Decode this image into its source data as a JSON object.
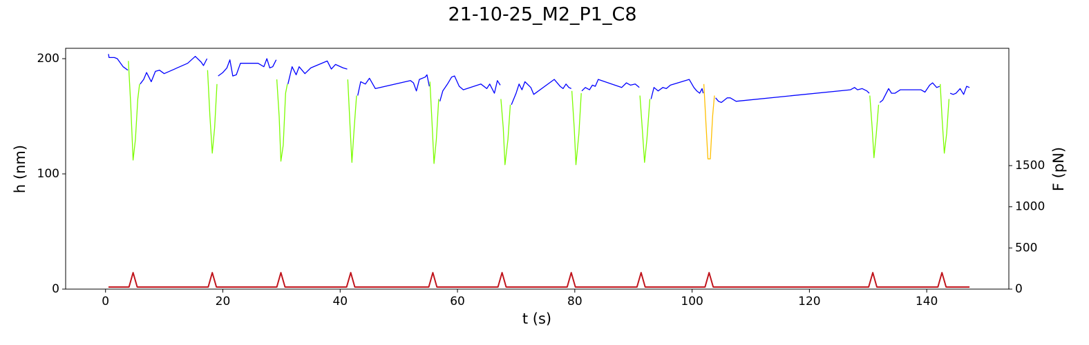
{
  "chart_data": {
    "type": "line",
    "title": "21-10-25_M2_P1_C8",
    "xlabel": "t (s)",
    "ylabel": "h (nm)",
    "y2label": "F (pN)",
    "ylabel_color": "#0000ff",
    "y2label_color": "#c0141c",
    "xlim": [
      -6.8,
      154
    ],
    "xticks": [
      0,
      20,
      40,
      60,
      80,
      100,
      120,
      140
    ],
    "ylim": [
      0,
      209
    ],
    "yticks": [
      0,
      100,
      200
    ],
    "y2lim": [
      0,
      2925
    ],
    "y2ticks": [
      0,
      500,
      1000,
      1500
    ],
    "grid": false,
    "series": [
      {
        "color": "#0000ff",
        "x": [
          0.5,
          0.6,
          1.5,
          2,
          3,
          3.8,
          null,
          5.9,
          6.5,
          7,
          7.8,
          8.5,
          9.2,
          10,
          14,
          15.3,
          16.3,
          16.7,
          17.3,
          null,
          19.2,
          20,
          20.7,
          21.2,
          21.7,
          22.3,
          23,
          26,
          27,
          27.5,
          28,
          28.5,
          29.1,
          null,
          31.1,
          31.8,
          32.5,
          33,
          34,
          35,
          37.8,
          38.5,
          39.2,
          40.5,
          41.2,
          null,
          43,
          43.5,
          44.3,
          45,
          46,
          52,
          52.5,
          53,
          53.5,
          54.5,
          54.8,
          55.2,
          null,
          57,
          57.5,
          58.3,
          59,
          59.5,
          60.3,
          61,
          64,
          65,
          65.5,
          66.3,
          66.8,
          67.3,
          null,
          69.2,
          70,
          70.5,
          71,
          71.5,
          72.5,
          73,
          76.5,
          77.5,
          78,
          78.5,
          79,
          79.4,
          null,
          81.2,
          81.8,
          82.5,
          83,
          83.5,
          84,
          88,
          88.8,
          89.5,
          90.3,
          91,
          null,
          93,
          93.5,
          94.2,
          95,
          95.6,
          96.3,
          99.5,
          100.3,
          100.8,
          101.3,
          101.7,
          101.9,
          null,
          104,
          104.5,
          105,
          106,
          106.5,
          107.5,
          127,
          127.7,
          128.2,
          129,
          129.8,
          130.2,
          null,
          132,
          132.5,
          133.5,
          134,
          134.6,
          135.5,
          139,
          139.7,
          140.5,
          141,
          141.7,
          142.2,
          null,
          144,
          144.5,
          145,
          145.7,
          146.3,
          146.8,
          147.3
        ],
        "values": [
          204,
          201,
          201,
          200,
          193,
          190,
          null,
          178,
          182,
          188,
          180,
          189,
          190,
          187,
          196,
          202,
          197,
          194,
          200,
          null,
          185,
          188,
          192,
          199,
          185,
          186,
          196,
          196,
          193,
          200,
          192,
          193,
          199,
          null,
          178,
          193,
          186,
          193,
          187,
          192,
          198,
          191,
          195,
          192,
          191,
          null,
          168,
          180,
          178,
          183,
          174,
          181,
          179,
          172,
          182,
          184,
          186,
          176,
          null,
          163,
          172,
          178,
          184,
          185,
          176,
          173,
          178,
          174,
          178,
          170,
          181,
          177,
          null,
          160,
          170,
          178,
          173,
          180,
          175,
          169,
          182,
          176,
          174,
          178,
          175,
          174,
          null,
          172,
          175,
          173,
          177,
          176,
          182,
          175,
          179,
          177,
          178,
          175,
          null,
          165,
          175,
          172,
          175,
          174,
          177,
          182,
          175,
          172,
          170,
          174,
          170,
          null,
          166,
          163,
          162,
          166,
          166,
          163,
          173,
          175,
          173,
          174,
          172,
          170,
          null,
          162,
          164,
          174,
          170,
          170,
          173,
          173,
          171,
          177,
          179,
          175,
          176,
          null,
          170,
          169,
          170,
          174,
          169,
          176,
          175
        ]
      },
      {
        "color": "#7cfc00",
        "x": [
          3.9,
          4.3,
          4.7,
          5.1,
          5.5,
          5.8,
          null,
          17.4,
          17.8,
          18.2,
          18.6,
          19,
          null,
          29.2,
          29.6,
          29.9,
          30.3,
          30.7,
          31,
          null,
          41.3,
          41.7,
          42,
          42.4,
          42.8,
          null,
          55.3,
          55.7,
          56,
          56.4,
          56.8,
          null,
          67.4,
          67.8,
          68.1,
          68.6,
          69,
          null,
          79.5,
          79.9,
          80.2,
          80.7,
          81.1,
          null,
          91.1,
          91.5,
          91.9,
          92.3,
          92.8,
          null,
          130.3,
          130.7,
          131,
          131.4,
          131.8,
          null,
          142.3,
          142.6,
          143,
          143.4,
          143.8
        ],
        "values": [
          198,
          160,
          112,
          130,
          165,
          178,
          null,
          190,
          150,
          118,
          140,
          178,
          null,
          182,
          150,
          111,
          125,
          170,
          178,
          null,
          182,
          140,
          110,
          140,
          168,
          null,
          180,
          140,
          109,
          130,
          165,
          null,
          165,
          140,
          108,
          130,
          160,
          null,
          172,
          140,
          108,
          135,
          170,
          null,
          168,
          140,
          110,
          130,
          165,
          null,
          168,
          140,
          114,
          135,
          160,
          null,
          178,
          150,
          118,
          135,
          165
        ]
      },
      {
        "color": "#ffbf00",
        "x": [
          102,
          102.4,
          102.7,
          103.1,
          103.5,
          103.8
        ],
        "values": [
          178,
          140,
          113,
          113,
          150,
          168
        ]
      },
      {
        "color": "#c0141c",
        "axis": "y2",
        "x": [
          0.5,
          4,
          4.7,
          5.4,
          17.5,
          18.2,
          18.9,
          29.2,
          29.9,
          30.6,
          41.1,
          41.8,
          42.5,
          55.1,
          55.8,
          56.5,
          66.9,
          67.6,
          68.3,
          78.7,
          79.4,
          80.1,
          90.6,
          91.3,
          92,
          102.2,
          102.9,
          103.6,
          130.1,
          130.8,
          131.5,
          141.9,
          142.6,
          143.3,
          147.3
        ],
        "values": [
          25,
          25,
          200,
          25,
          25,
          200,
          25,
          25,
          200,
          25,
          25,
          200,
          25,
          25,
          200,
          25,
          25,
          200,
          25,
          25,
          200,
          25,
          25,
          200,
          25,
          25,
          200,
          25,
          25,
          200,
          25,
          25,
          200,
          25,
          25
        ]
      }
    ]
  }
}
